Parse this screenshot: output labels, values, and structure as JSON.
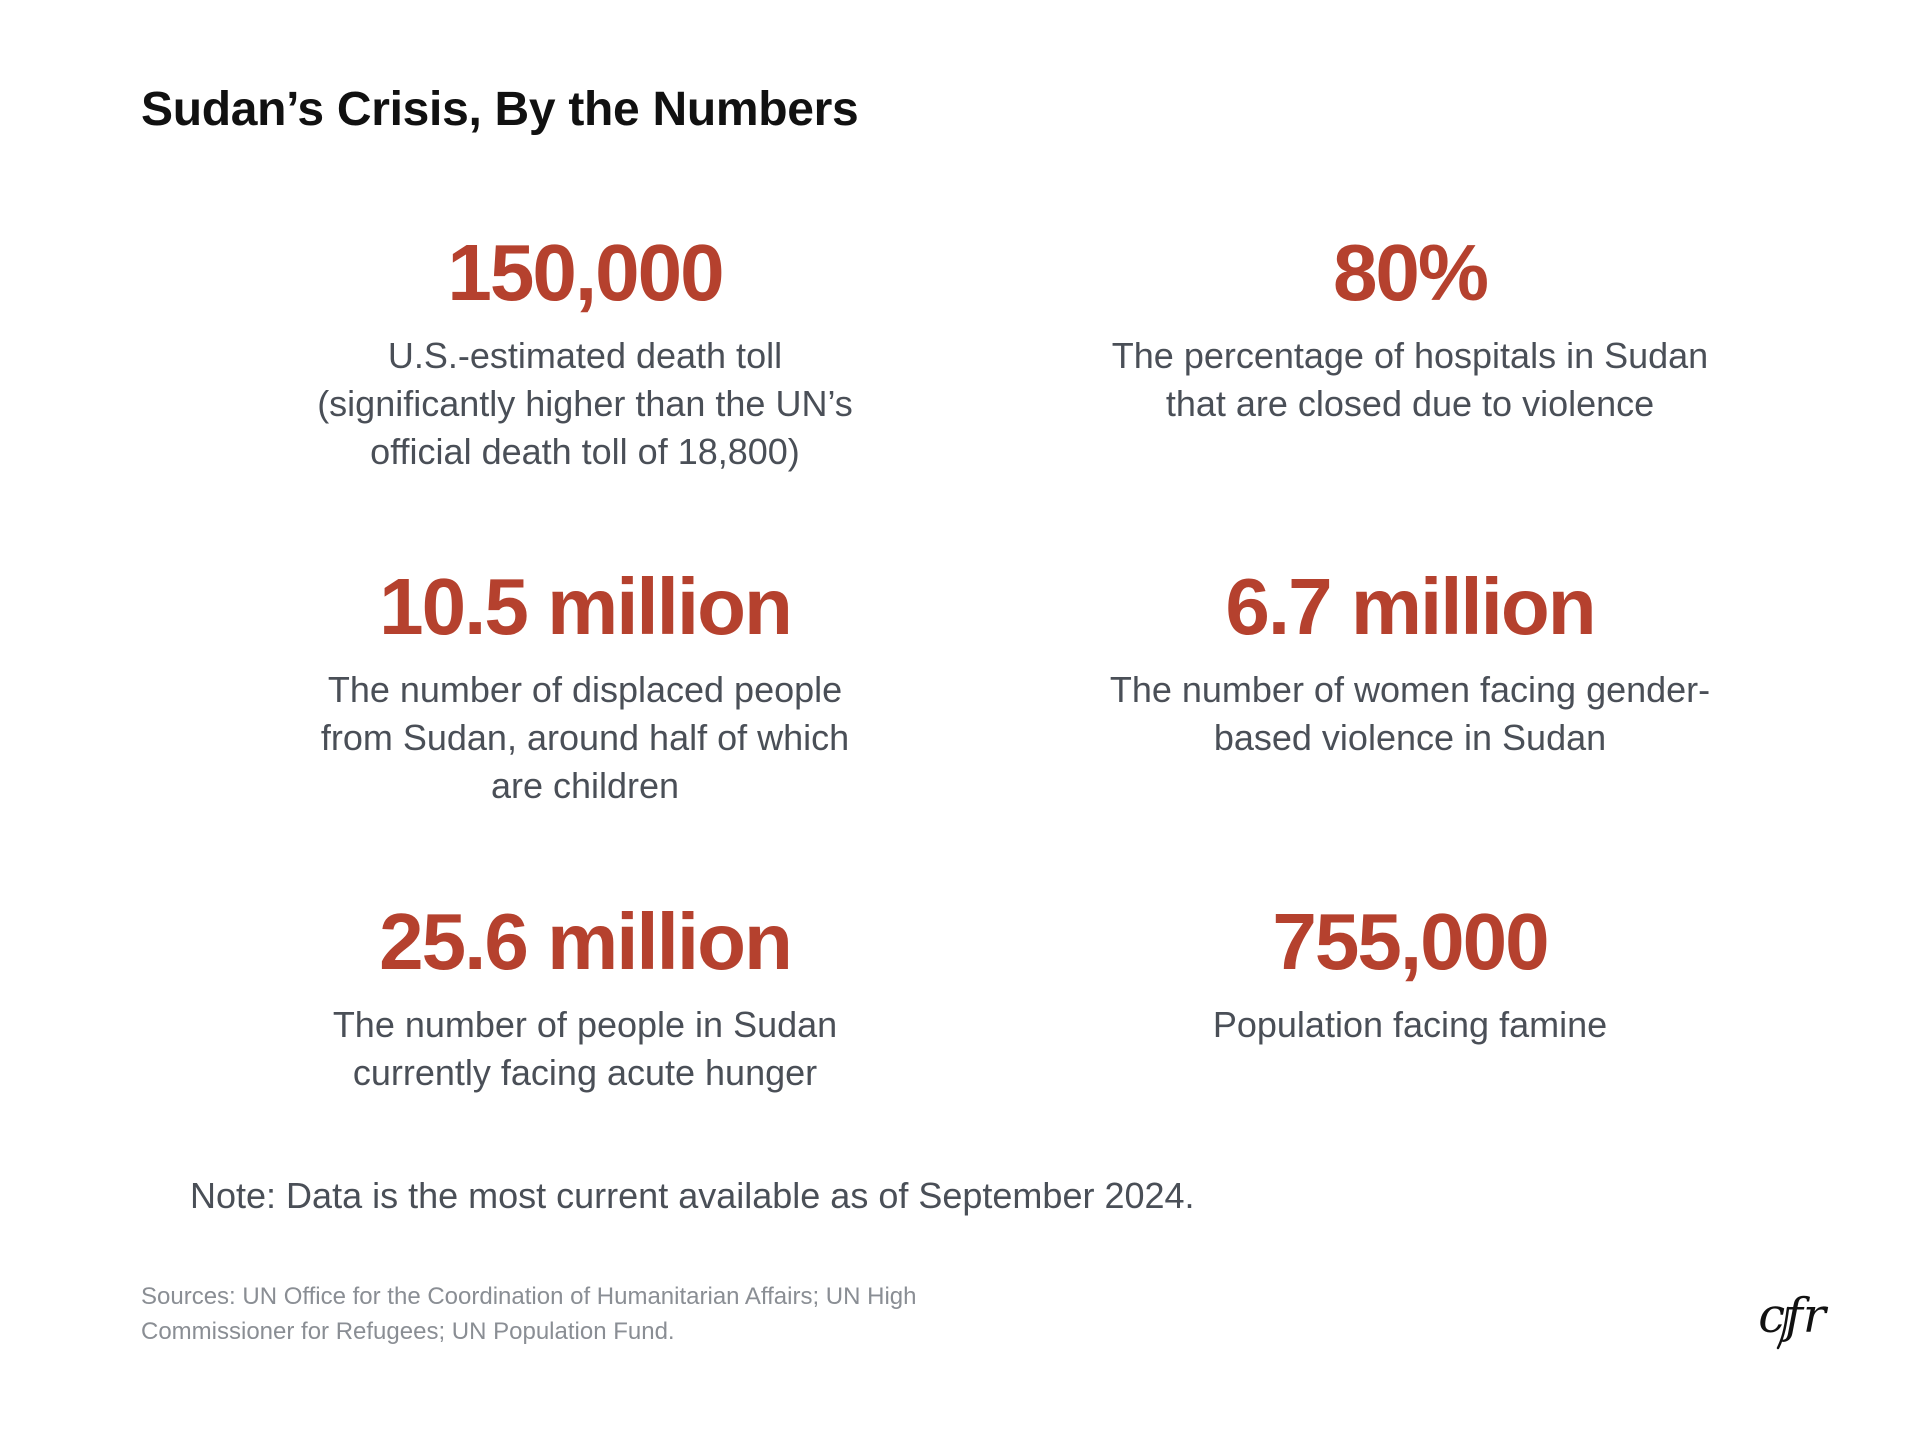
{
  "header": {
    "title": "Sudan’s Crisis, By the Numbers"
  },
  "stats": [
    {
      "value": "150,000",
      "description": "U.S.-estimated death toll (significantly higher than the UN’s official death toll of 18,800)"
    },
    {
      "value": "80%",
      "description": "The percentage of hospitals in Sudan that are closed due to violence"
    },
    {
      "value": "10.5 million",
      "description": "The number of displaced people from Sudan, around half of which are children"
    },
    {
      "value": "6.7 million",
      "description": "The number of women facing gender-based violence in Sudan"
    },
    {
      "value": "25.6 million",
      "description": "The number of people in Sudan currently facing acute hunger"
    },
    {
      "value": "755,000",
      "description": "Population facing famine"
    }
  ],
  "footer": {
    "note": "Note: Data is the most current available as of September 2024.",
    "sources": "Sources:  UN Office for the Coordination of Humanitarian Affairs; UN High Commissioner for Refugees; UN Population Fund.",
    "logo_text": "cfr"
  },
  "colors": {
    "accent": "#b5412e",
    "title": "#111111",
    "body_text": "#4a4f57",
    "muted_text": "#8a8e94",
    "background": "#ffffff"
  },
  "icons": {
    "logo": "cfr-logo-icon"
  }
}
